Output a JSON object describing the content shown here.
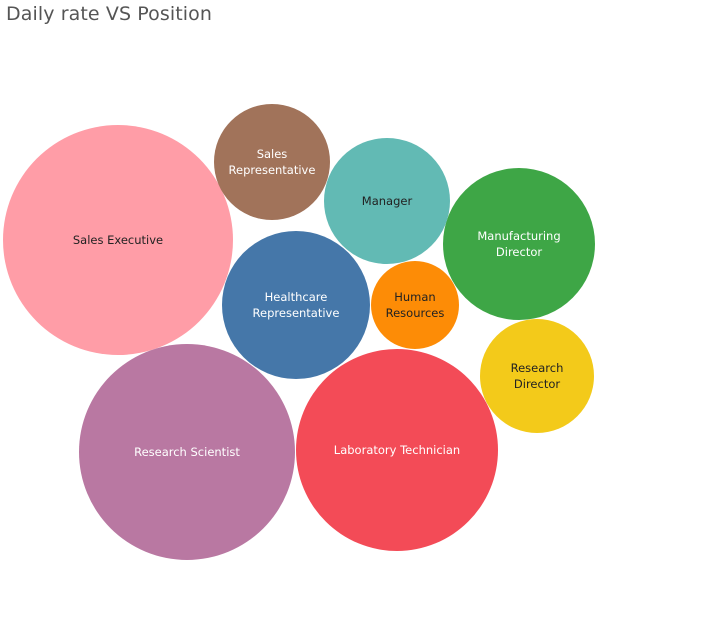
{
  "chart_data": {
    "type": "bubble",
    "title": "Daily rate VS Position",
    "series": [
      {
        "name": "Sales Executive",
        "color": "#ff9da7",
        "label_color": "#222222"
      },
      {
        "name": "Research Scientist",
        "color": "#b978a2",
        "label_color": "#ffffff"
      },
      {
        "name": "Laboratory Technician",
        "color": "#f34b57",
        "label_color": "#ffffff"
      },
      {
        "name": "Healthcare Representative",
        "color": "#4577a9",
        "label_color": "#ffffff"
      },
      {
        "name": "Manufacturing Director",
        "color": "#3ea646",
        "label_color": "#ffffff"
      },
      {
        "name": "Manager",
        "color": "#62bab4",
        "label_color": "#222222"
      },
      {
        "name": "Sales Representative",
        "color": "#a1735a",
        "label_color": "#ffffff"
      },
      {
        "name": "Research Director",
        "color": "#f3ca1a",
        "label_color": "#222222"
      },
      {
        "name": "Human Resources",
        "color": "#fd8c06",
        "label_color": "#222222"
      }
    ]
  }
}
